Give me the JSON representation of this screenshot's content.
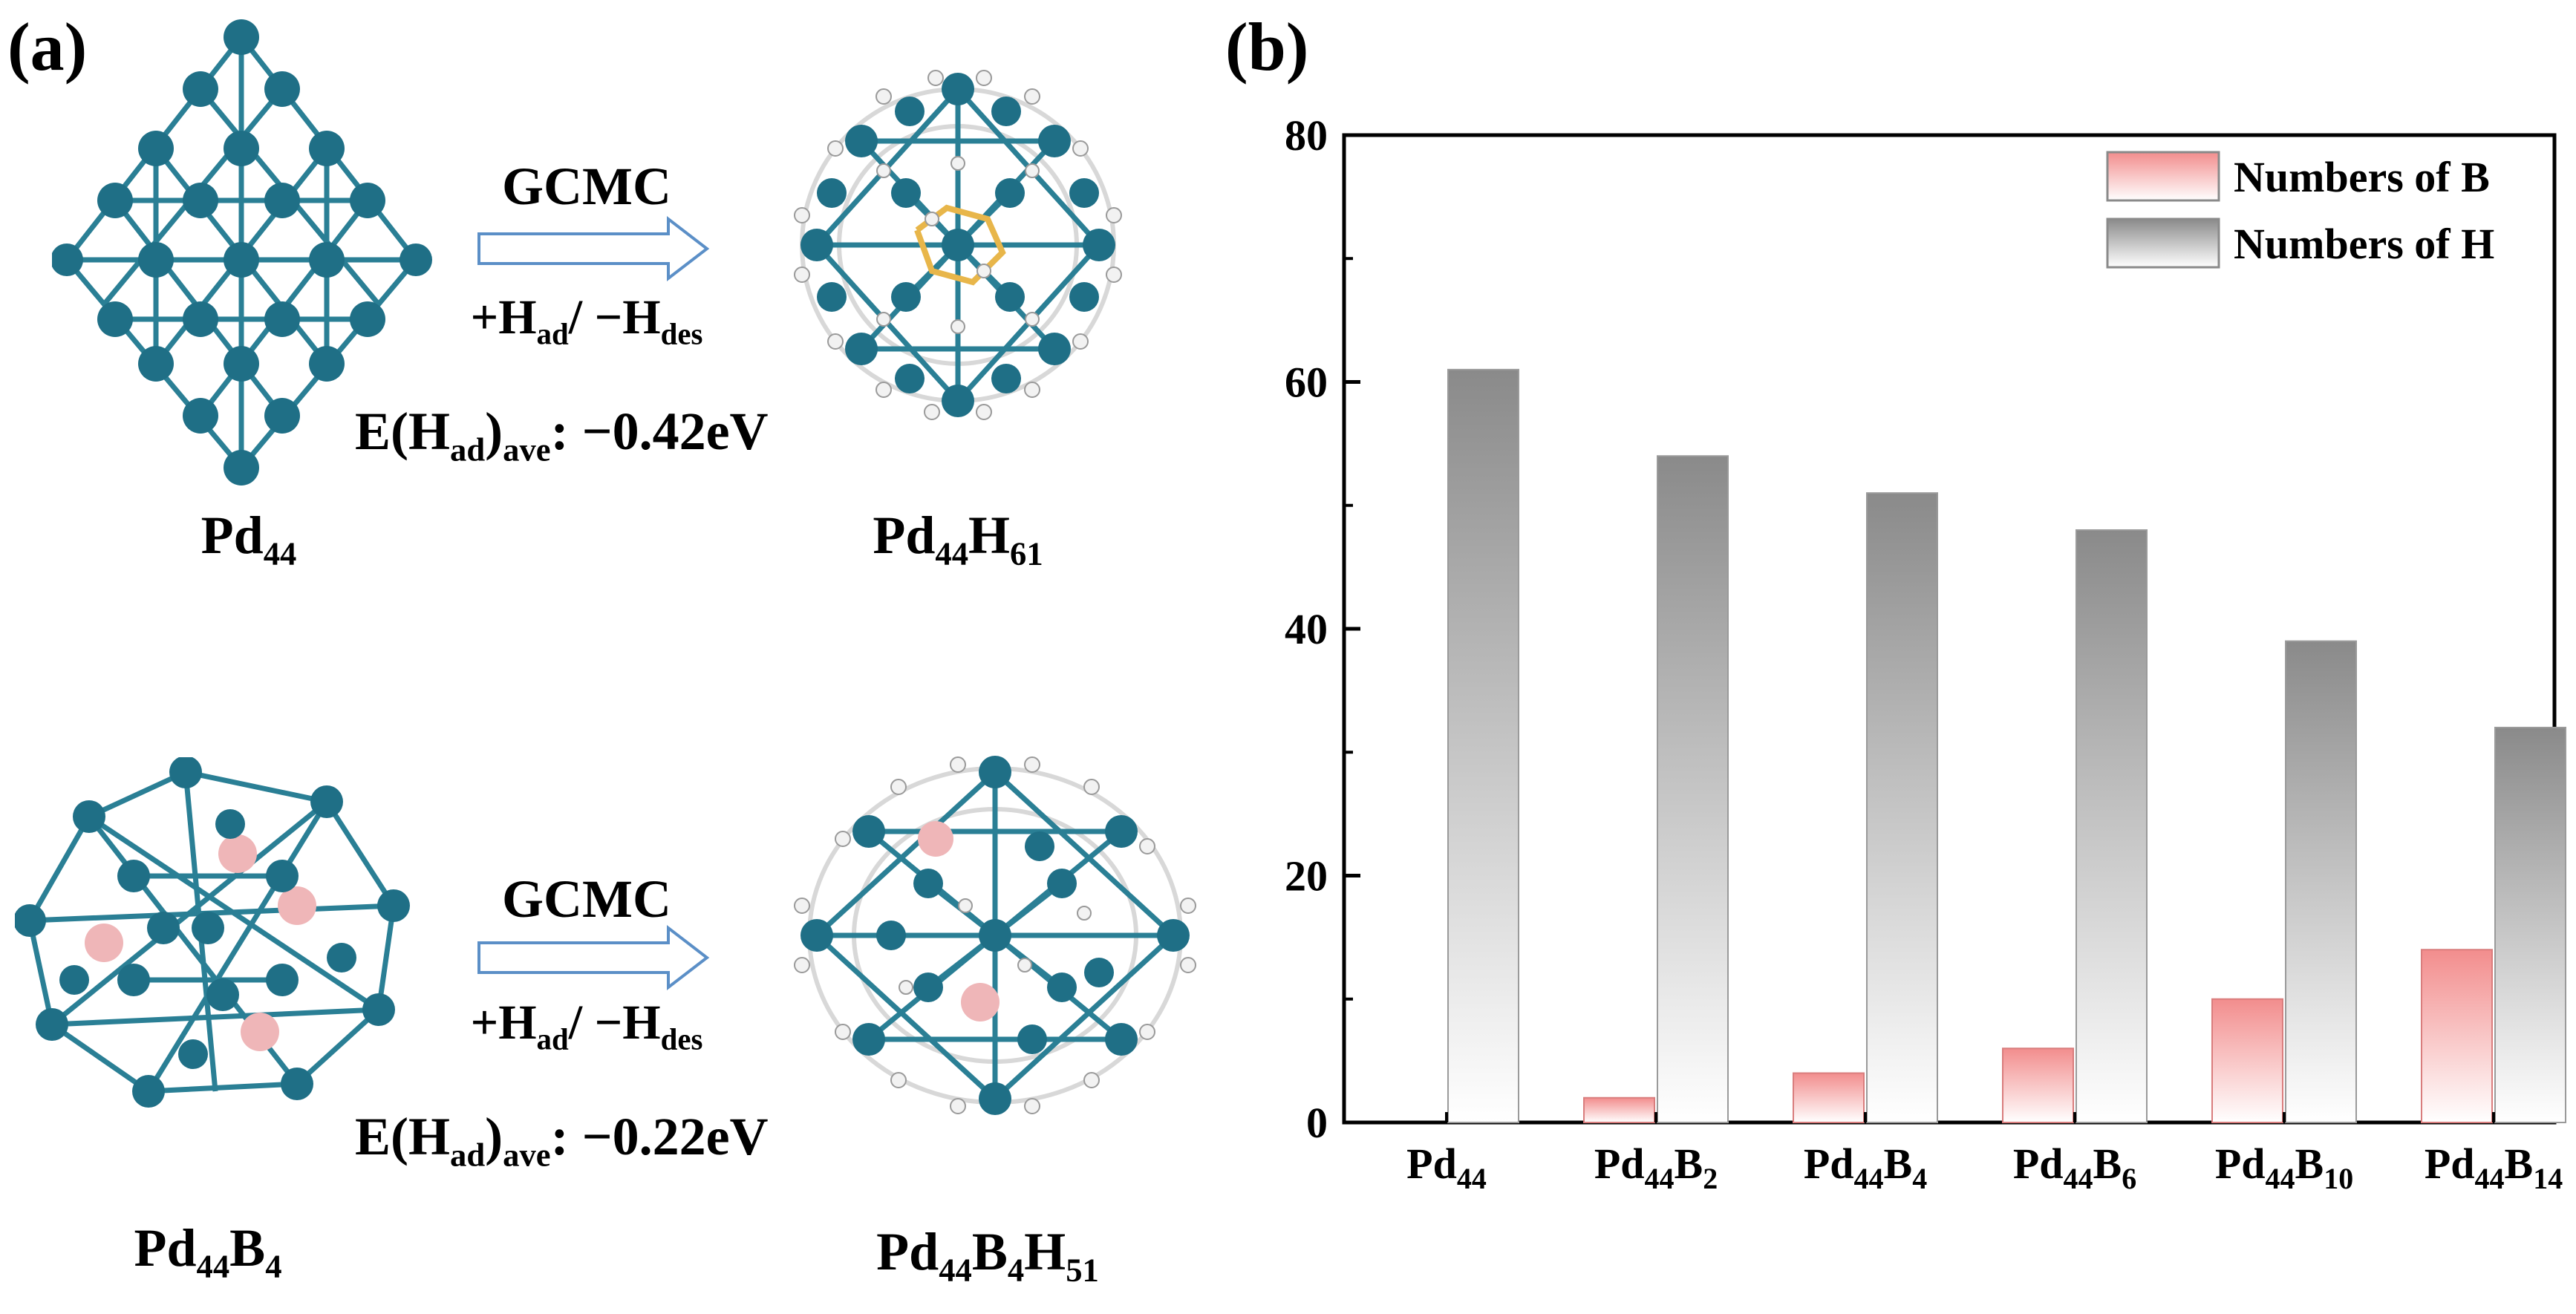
{
  "panel_a": {
    "label": "(a)",
    "top": {
      "left_cluster": {
        "base": "Pd",
        "sub": "44"
      },
      "right_cluster": {
        "p1": "Pd",
        "s1": "44",
        "p2": "H",
        "s2": "61"
      },
      "method": "GCMC",
      "process": {
        "p1": "+H",
        "s1": "ad",
        "p2": "/ −H",
        "s2": "des"
      },
      "energy": {
        "p1": "E(H",
        "s1": "ad",
        "p2": ")",
        "s2": "ave",
        "p3": ": −0.42eV"
      }
    },
    "bottom": {
      "left_cluster": {
        "p1": "Pd",
        "s1": "44",
        "p2": "B",
        "s2": "4"
      },
      "right_cluster": {
        "p1": "Pd",
        "s1": "44",
        "p2": "B",
        "s2": "4",
        "p3": "H",
        "s3": "51"
      },
      "method": "GCMC",
      "process": {
        "p1": "+H",
        "s1": "ad",
        "p2": "/ −H",
        "s2": "des"
      },
      "energy": {
        "p1": "E(H",
        "s1": "ad",
        "p2": ")",
        "s2": "ave",
        "p3": ": −0.22eV"
      }
    },
    "colors": {
      "pd": "#1f6f86",
      "b": "#efb6b8",
      "h": "#f2f2f2",
      "bond": "#2a7f95"
    }
  },
  "panel_b": {
    "label": "(b)"
  },
  "chart_data": {
    "type": "bar",
    "title": "",
    "xlabel": "",
    "ylabel": "",
    "ylim": [
      0,
      80
    ],
    "yticks": [
      0,
      20,
      40,
      60,
      80
    ],
    "categories": [
      {
        "base": "Pd",
        "sub1": "44",
        "el2": "",
        "sub2": ""
      },
      {
        "base": "Pd",
        "sub1": "44",
        "el2": "B",
        "sub2": "2"
      },
      {
        "base": "Pd",
        "sub1": "44",
        "el2": "B",
        "sub2": "4"
      },
      {
        "base": "Pd",
        "sub1": "44",
        "el2": "B",
        "sub2": "6"
      },
      {
        "base": "Pd",
        "sub1": "44",
        "el2": "B",
        "sub2": "10"
      },
      {
        "base": "Pd",
        "sub1": "44",
        "el2": "B",
        "sub2": "14"
      }
    ],
    "series": [
      {
        "name": "Numbers of B",
        "values": [
          0,
          2,
          4,
          6,
          10,
          14
        ],
        "color_top": "#f28d8d",
        "color_bottom": "#ffffff"
      },
      {
        "name": "Numbers of H",
        "values": [
          61,
          54,
          51,
          48,
          39,
          32
        ],
        "color_top": "#8a8a8a",
        "color_bottom": "#ffffff"
      }
    ],
    "legend_position": "top-right"
  }
}
